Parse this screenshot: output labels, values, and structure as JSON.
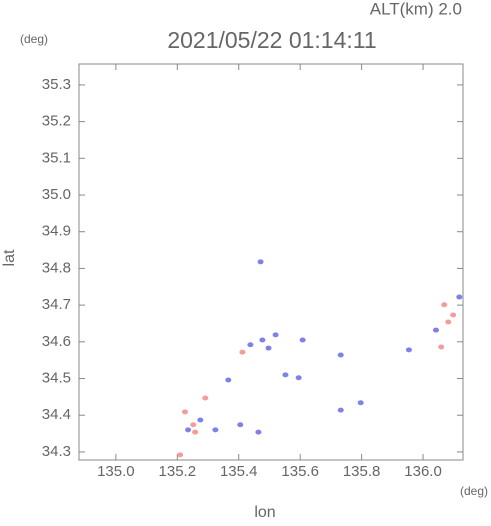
{
  "chart_data": {
    "type": "scatter",
    "title": "2021/05/22 01:14:11",
    "annotation": "ALT(km) 2.0",
    "y_unit": "(deg)",
    "x_unit": "(deg)",
    "ylabel": "lat",
    "xlabel": "lon",
    "xlim": [
      134.88,
      136.13
    ],
    "ylim": [
      34.278,
      35.357
    ],
    "xticks": [
      {
        "value": 135.0,
        "label": "135.0"
      },
      135.2,
      135.4,
      135.6,
      135.8,
      {
        "value": 136.0,
        "label": "136.0"
      }
    ],
    "yticks": [
      34.3,
      34.4,
      34.5,
      34.6,
      34.7,
      34.8,
      34.9,
      {
        "value": 35.0,
        "label": "35.0"
      },
      35.1,
      35.2,
      35.3
    ],
    "series": [
      {
        "color": "#f28a8a",
        "x": [
          135.209,
          135.252,
          135.225,
          135.291,
          135.412,
          136.069,
          136.082,
          136.059,
          136.098,
          135.258
        ],
        "y": [
          34.292,
          34.374,
          34.409,
          34.447,
          34.572,
          34.701,
          34.654,
          34.586,
          34.673,
          34.354
        ]
      },
      {
        "color": "#6a6ae6",
        "x": [
          135.235,
          135.275,
          135.324,
          135.366,
          135.405,
          135.464,
          135.438,
          135.477,
          135.52,
          135.497,
          135.471,
          135.552,
          135.595,
          135.732,
          135.732,
          135.954,
          136.042,
          136.118,
          135.608,
          135.797
        ],
        "y": [
          34.36,
          34.387,
          34.36,
          34.496,
          34.374,
          34.354,
          34.592,
          34.605,
          34.619,
          34.583,
          34.818,
          34.51,
          34.502,
          34.564,
          34.414,
          34.578,
          34.632,
          34.722,
          34.605,
          34.434
        ]
      }
    ]
  }
}
